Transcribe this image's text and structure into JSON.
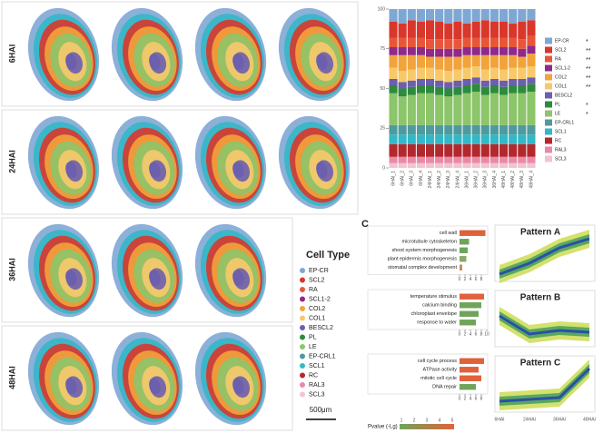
{
  "panel_a": {
    "row_labels": [
      "6HAI",
      "24HAI",
      "36HAI",
      "48HAI"
    ],
    "legend_title": "Cell Type",
    "scale_bar": "500μm"
  },
  "chart_data": [
    {
      "type": "stacked_bar",
      "categories": [
        "6HAI_1",
        "6HAI_2",
        "6HAI_3",
        "6HAI_4",
        "24HAI_1",
        "24HAI_2",
        "24HAI_3",
        "24HAI_4",
        "36HAI_1",
        "36HAI_2",
        "36HAI_3",
        "36HAI_4",
        "48HAI_1",
        "48HAI_2",
        "48HAI_3",
        "48HAI_4"
      ],
      "series": [
        {
          "name": "EP-CR",
          "color": "#7fa7d4",
          "values": [
            8,
            9,
            7,
            8,
            7,
            8,
            9,
            8,
            9,
            8,
            7,
            8,
            8,
            9,
            8,
            7
          ]
        },
        {
          "name": "SCL2",
          "color": "#d9372b",
          "values": [
            10,
            9,
            11,
            10,
            12,
            11,
            10,
            11,
            9,
            10,
            11,
            10,
            10,
            9,
            11,
            10
          ]
        },
        {
          "name": "RA",
          "color": "#e8563a",
          "values": [
            6,
            6,
            6,
            6,
            6,
            6,
            6,
            6,
            6,
            6,
            6,
            6,
            6,
            6,
            6,
            6
          ]
        },
        {
          "name": "SCL1-2",
          "color": "#8e2a8a",
          "values": [
            5,
            5,
            5,
            5,
            5,
            5,
            5,
            5,
            5,
            5,
            5,
            5,
            5,
            5,
            5,
            5
          ]
        },
        {
          "name": "COL2",
          "color": "#f3a33c",
          "values": [
            8,
            10,
            9,
            8,
            7,
            8,
            9,
            8,
            8,
            7,
            9,
            8,
            9,
            8,
            7,
            8
          ]
        },
        {
          "name": "COL1",
          "color": "#f7c96a",
          "values": [
            7,
            7,
            7,
            7,
            7,
            7,
            7,
            7,
            7,
            7,
            7,
            7,
            7,
            7,
            7,
            7
          ]
        },
        {
          "name": "BESCL2",
          "color": "#6b5fae",
          "values": [
            4,
            4,
            4,
            4,
            4,
            4,
            4,
            4,
            4,
            4,
            4,
            4,
            4,
            4,
            4,
            4
          ]
        },
        {
          "name": "PL",
          "color": "#2e8b3d",
          "values": [
            5,
            5,
            5,
            5,
            5,
            5,
            5,
            5,
            5,
            5,
            5,
            5,
            5,
            5,
            5,
            5
          ]
        },
        {
          "name": "LE",
          "color": "#8cc56a",
          "values": [
            20,
            18,
            19,
            20,
            20,
            19,
            18,
            19,
            20,
            21,
            19,
            20,
            19,
            20,
            20,
            21
          ]
        },
        {
          "name": "EP-CRL1",
          "color": "#4f9a9e",
          "values": [
            6,
            6,
            6,
            6,
            6,
            6,
            6,
            6,
            6,
            6,
            6,
            6,
            6,
            6,
            6,
            6
          ]
        },
        {
          "name": "SCL1",
          "color": "#33b8c8",
          "values": [
            6,
            6,
            6,
            6,
            6,
            6,
            6,
            6,
            6,
            6,
            6,
            6,
            6,
            6,
            6,
            6
          ]
        },
        {
          "name": "RC",
          "color": "#b3282d",
          "values": [
            8,
            8,
            8,
            8,
            8,
            8,
            8,
            8,
            8,
            8,
            8,
            8,
            8,
            8,
            8,
            8
          ]
        },
        {
          "name": "RAL3",
          "color": "#e88aa8",
          "values": [
            4,
            4,
            4,
            4,
            4,
            4,
            4,
            4,
            4,
            4,
            4,
            4,
            4,
            4,
            4,
            4
          ]
        },
        {
          "name": "SCL3",
          "color": "#f2c4d0",
          "values": [
            3,
            3,
            3,
            3,
            3,
            3,
            3,
            3,
            3,
            3,
            3,
            3,
            3,
            3,
            3,
            3
          ]
        }
      ],
      "significance": [
        "*",
        "**",
        "**",
        "**",
        "**",
        "**",
        "",
        "*",
        "*",
        "",
        "",
        "",
        "",
        ""
      ],
      "ylim": [
        0,
        100
      ],
      "yticks": [
        0,
        25,
        50,
        75,
        100
      ]
    },
    {
      "type": "hbar",
      "categories": [
        "cell wall",
        "microtubule cytoskeleton",
        "shoot system morphogenesis",
        "plant epidermis morphogenesis",
        "stomatal complex development"
      ],
      "values": [
        9.5,
        3.5,
        3,
        2.5,
        1
      ],
      "colors": [
        "#e0623a",
        "#6fa45a",
        "#6fa45a",
        "#8aa868",
        "#c98a5a"
      ],
      "xlim": [
        0,
        10
      ],
      "xticks": [
        0,
        2,
        4,
        6,
        8
      ]
    },
    {
      "type": "hbar",
      "categories": [
        "temperature stimulus",
        "calcium binding",
        "chloroplast envelope",
        "response to water"
      ],
      "values": [
        9,
        8,
        7,
        6
      ],
      "colors": [
        "#e0623a",
        "#6fa45a",
        "#6fa45a",
        "#6fa45a"
      ],
      "xlim": [
        0,
        10
      ],
      "xticks": [
        0,
        2,
        4,
        6,
        8,
        10
      ]
    },
    {
      "type": "hbar",
      "categories": [
        "cell cycle process",
        "ATPase activity",
        "mitotic cell cycle",
        "DNA repair"
      ],
      "values": [
        9,
        7,
        8,
        6
      ],
      "colors": [
        "#e0623a",
        "#e0623a",
        "#e0623a",
        "#6fa45a"
      ],
      "xlim": [
        0,
        10
      ],
      "xticks": [
        0,
        2,
        4,
        6,
        8
      ]
    }
  ],
  "panel_c": {
    "label": "C",
    "patterns": [
      "Pattern A",
      "Pattern B",
      "Pattern C"
    ],
    "x_labels": [
      "6HAI",
      "24HAI",
      "36HAI",
      "48HAI"
    ],
    "colorbar_label": "Pvalue (-Lg)",
    "colorbar_ticks": [
      1,
      2,
      3,
      4,
      5
    ]
  }
}
